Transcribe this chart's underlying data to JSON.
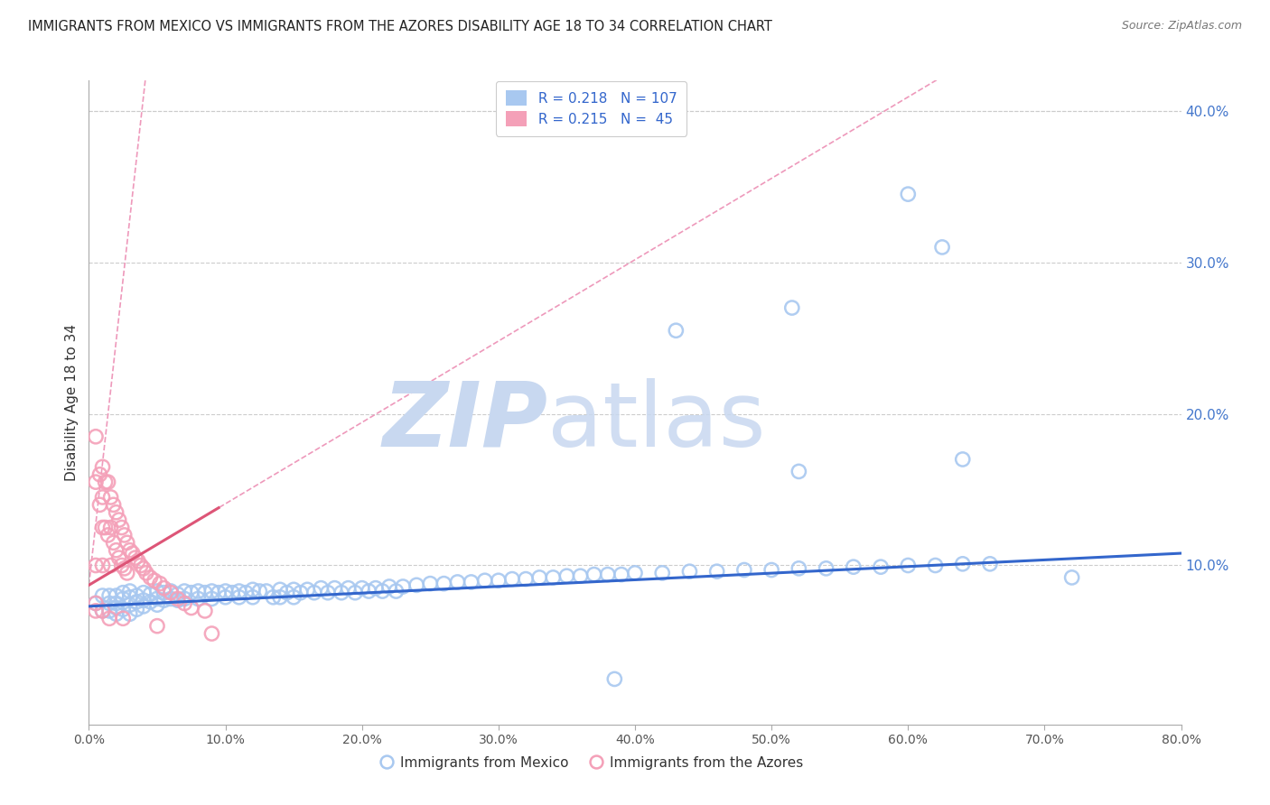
{
  "title": "IMMIGRANTS FROM MEXICO VS IMMIGRANTS FROM THE AZORES DISABILITY AGE 18 TO 34 CORRELATION CHART",
  "source": "Source: ZipAtlas.com",
  "ylabel": "Disability Age 18 to 34",
  "legend_label_blue": "Immigrants from Mexico",
  "legend_label_pink": "Immigrants from the Azores",
  "xlim": [
    0.0,
    0.8
  ],
  "ylim": [
    -0.005,
    0.42
  ],
  "xticks": [
    0.0,
    0.1,
    0.2,
    0.3,
    0.4,
    0.5,
    0.6,
    0.7,
    0.8
  ],
  "yticks_right": [
    0.1,
    0.2,
    0.3,
    0.4
  ],
  "blue_color": "#A8C8F0",
  "pink_color": "#F4A0B8",
  "blue_line_color": "#3366CC",
  "pink_line_color": "#DD5577",
  "pink_dash_color": "#EE99BB",
  "legend_text_color": "#3366CC",
  "title_color": "#222222",
  "source_color": "#777777",
  "background_color": "#FFFFFF",
  "grid_color": "#CCCCCC",
  "watermark_zip_color": "#C8D8F0",
  "watermark_atlas_color": "#C8D8F0",
  "blue_scatter_x": [
    0.005,
    0.01,
    0.01,
    0.015,
    0.015,
    0.015,
    0.02,
    0.02,
    0.02,
    0.02,
    0.025,
    0.025,
    0.025,
    0.03,
    0.03,
    0.03,
    0.03,
    0.035,
    0.035,
    0.035,
    0.04,
    0.04,
    0.04,
    0.045,
    0.045,
    0.05,
    0.05,
    0.05,
    0.055,
    0.055,
    0.06,
    0.06,
    0.065,
    0.065,
    0.07,
    0.07,
    0.075,
    0.08,
    0.08,
    0.085,
    0.09,
    0.09,
    0.095,
    0.1,
    0.1,
    0.105,
    0.11,
    0.11,
    0.115,
    0.12,
    0.12,
    0.125,
    0.13,
    0.135,
    0.14,
    0.14,
    0.145,
    0.15,
    0.15,
    0.155,
    0.16,
    0.165,
    0.17,
    0.175,
    0.18,
    0.185,
    0.19,
    0.195,
    0.2,
    0.205,
    0.21,
    0.215,
    0.22,
    0.225,
    0.23,
    0.24,
    0.25,
    0.26,
    0.27,
    0.28,
    0.29,
    0.3,
    0.31,
    0.32,
    0.33,
    0.34,
    0.35,
    0.36,
    0.37,
    0.38,
    0.39,
    0.4,
    0.42,
    0.44,
    0.46,
    0.48,
    0.5,
    0.52,
    0.54,
    0.56,
    0.58,
    0.6,
    0.62,
    0.64,
    0.66,
    0.72
  ],
  "blue_scatter_y": [
    0.075,
    0.08,
    0.07,
    0.075,
    0.08,
    0.07,
    0.08,
    0.075,
    0.072,
    0.068,
    0.082,
    0.078,
    0.071,
    0.083,
    0.079,
    0.074,
    0.068,
    0.08,
    0.076,
    0.071,
    0.082,
    0.077,
    0.073,
    0.081,
    0.076,
    0.083,
    0.078,
    0.074,
    0.082,
    0.077,
    0.083,
    0.078,
    0.081,
    0.077,
    0.083,
    0.078,
    0.082,
    0.083,
    0.078,
    0.082,
    0.083,
    0.078,
    0.082,
    0.083,
    0.079,
    0.082,
    0.083,
    0.079,
    0.082,
    0.084,
    0.079,
    0.083,
    0.083,
    0.079,
    0.084,
    0.079,
    0.082,
    0.084,
    0.079,
    0.082,
    0.084,
    0.082,
    0.085,
    0.082,
    0.085,
    0.082,
    0.085,
    0.082,
    0.085,
    0.083,
    0.085,
    0.083,
    0.086,
    0.083,
    0.086,
    0.087,
    0.088,
    0.088,
    0.089,
    0.089,
    0.09,
    0.09,
    0.091,
    0.091,
    0.092,
    0.092,
    0.093,
    0.093,
    0.094,
    0.094,
    0.094,
    0.095,
    0.095,
    0.096,
    0.096,
    0.097,
    0.097,
    0.098,
    0.098,
    0.099,
    0.099,
    0.1,
    0.1,
    0.101,
    0.101,
    0.092
  ],
  "blue_outlier_x": [
    0.43,
    0.515,
    0.6,
    0.625,
    0.52,
    0.64,
    0.385
  ],
  "blue_outlier_y": [
    0.255,
    0.27,
    0.345,
    0.31,
    0.162,
    0.17,
    0.025
  ],
  "pink_scatter_x": [
    0.005,
    0.005,
    0.005,
    0.005,
    0.008,
    0.008,
    0.01,
    0.01,
    0.01,
    0.01,
    0.012,
    0.012,
    0.014,
    0.014,
    0.016,
    0.016,
    0.016,
    0.018,
    0.018,
    0.02,
    0.02,
    0.022,
    0.022,
    0.024,
    0.024,
    0.026,
    0.026,
    0.028,
    0.028,
    0.03,
    0.032,
    0.034,
    0.036,
    0.038,
    0.04,
    0.042,
    0.045,
    0.048,
    0.052,
    0.055,
    0.06,
    0.065,
    0.07,
    0.075,
    0.085
  ],
  "pink_scatter_y": [
    0.185,
    0.155,
    0.1,
    0.075,
    0.16,
    0.14,
    0.165,
    0.145,
    0.125,
    0.1,
    0.155,
    0.125,
    0.155,
    0.12,
    0.145,
    0.125,
    0.1,
    0.14,
    0.115,
    0.135,
    0.11,
    0.13,
    0.105,
    0.125,
    0.1,
    0.12,
    0.098,
    0.115,
    0.095,
    0.11,
    0.108,
    0.105,
    0.103,
    0.1,
    0.098,
    0.095,
    0.092,
    0.09,
    0.088,
    0.085,
    0.082,
    0.078,
    0.075,
    0.072,
    0.07
  ],
  "pink_extra_x": [
    0.005,
    0.01,
    0.015,
    0.025,
    0.05,
    0.09
  ],
  "pink_extra_y": [
    0.07,
    0.07,
    0.065,
    0.065,
    0.06,
    0.055
  ],
  "blue_trend_x": [
    0.0,
    0.8
  ],
  "blue_trend_y": [
    0.073,
    0.108
  ],
  "pink_trend_x": [
    0.0,
    0.095
  ],
  "pink_trend_y": [
    0.087,
    0.138
  ]
}
